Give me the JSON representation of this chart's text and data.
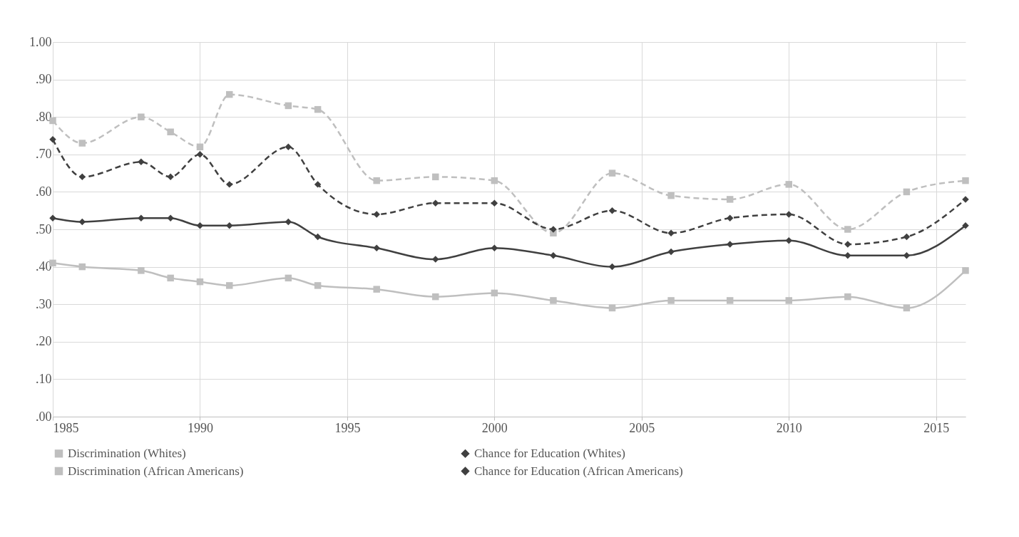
{
  "chart_data": {
    "type": "line",
    "x": [
      1985,
      1986,
      1988,
      1989,
      1990,
      1991,
      1993,
      1994,
      1996,
      1998,
      2000,
      2002,
      2004,
      2006,
      2008,
      2010,
      2012,
      2014,
      2016
    ],
    "series": [
      {
        "name": "Discrimination (Whites)",
        "color": "#bfbfbf",
        "marker": "square",
        "line_style": "solid",
        "values": [
          0.41,
          0.4,
          0.39,
          0.37,
          0.36,
          0.35,
          0.37,
          0.35,
          0.34,
          0.32,
          0.33,
          0.31,
          0.29,
          0.31,
          0.31,
          0.31,
          0.32,
          0.29,
          0.39
        ]
      },
      {
        "name": "Chance for Education (Whites)",
        "color": "#404040",
        "marker": "diamond",
        "line_style": "solid",
        "values": [
          0.53,
          0.52,
          0.53,
          0.53,
          0.51,
          0.51,
          0.52,
          0.48,
          0.45,
          0.42,
          0.45,
          0.43,
          0.4,
          0.44,
          0.46,
          0.47,
          0.43,
          0.43,
          0.51
        ]
      },
      {
        "name": "Discrimination (African Americans)",
        "color": "#bfbfbf",
        "marker": "square",
        "line_style": "dashed",
        "values": [
          0.79,
          0.73,
          0.8,
          0.76,
          0.72,
          0.86,
          0.83,
          0.82,
          0.63,
          0.64,
          0.63,
          0.49,
          0.65,
          0.59,
          0.58,
          0.62,
          0.5,
          0.6,
          0.63
        ]
      },
      {
        "name": "Chance for Education (African Americans)",
        "color": "#404040",
        "marker": "diamond",
        "line_style": "dashed",
        "values": [
          0.74,
          0.64,
          0.68,
          0.64,
          0.7,
          0.62,
          0.72,
          0.62,
          0.54,
          0.57,
          0.57,
          0.5,
          0.55,
          0.49,
          0.53,
          0.54,
          0.46,
          0.48,
          0.58
        ]
      }
    ],
    "xlim": [
      1985,
      2016
    ],
    "xticks": [
      1985,
      1990,
      1995,
      2000,
      2005,
      2010,
      2015
    ],
    "ylim": [
      0,
      1
    ],
    "yticks": [
      {
        "value": 0,
        "label": ".00"
      },
      {
        "value": 0.1,
        "label": ".10"
      },
      {
        "value": 0.2,
        "label": ".20"
      },
      {
        "value": 0.3,
        "label": ".30"
      },
      {
        "value": 0.4,
        "label": ".40"
      },
      {
        "value": 0.5,
        "label": ".50"
      },
      {
        "value": 0.6,
        "label": ".60"
      },
      {
        "value": 0.7,
        "label": ".70"
      },
      {
        "value": 0.8,
        "label": ".80"
      },
      {
        "value": 0.9,
        "label": ".90"
      },
      {
        "value": 1,
        "label": "1.00"
      }
    ],
    "grid": true,
    "legend": "bottom"
  }
}
